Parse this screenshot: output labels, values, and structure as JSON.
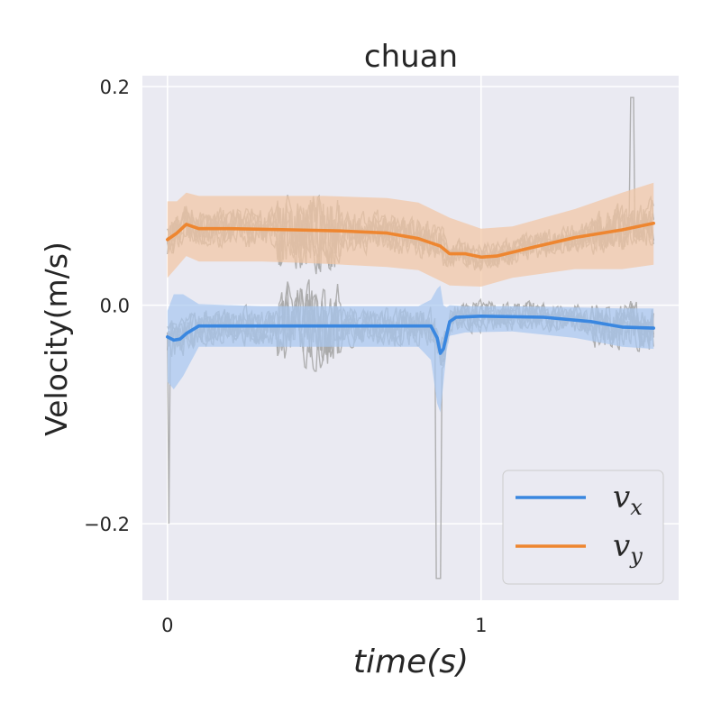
{
  "chart_data": {
    "type": "line",
    "title": "chuan",
    "xlabel": "time(s)",
    "ylabel": "Velocity(m/s)",
    "xlim": [
      -0.08,
      1.63
    ],
    "ylim": [
      -0.27,
      0.21
    ],
    "xticks": [
      0,
      1
    ],
    "xtick_labels": [
      "0",
      "1"
    ],
    "yticks": [
      0.2,
      0.0,
      -0.2
    ],
    "ytick_labels": [
      "0.2",
      "0.0",
      "−0.2"
    ],
    "grid": true,
    "legend_position": "bottom-right",
    "legend": [
      {
        "base": "v",
        "sub": "x",
        "color": "#3a87e0"
      },
      {
        "base": "v",
        "sub": "y",
        "color": "#ee8630"
      }
    ],
    "colors": {
      "background": "#eaeaf2",
      "grid": "#ffffff",
      "raw": "#a9a9a9",
      "vx": "#3a87e0",
      "vx_band": "#a9c8f0",
      "vy": "#ee8630",
      "vy_band": "#f2c6a4"
    },
    "series": [
      {
        "name": "v_x",
        "color": "#3a87e0",
        "x": [
          0,
          0.02,
          0.04,
          0.06,
          0.1,
          0.2,
          0.4,
          0.6,
          0.8,
          0.84,
          0.86,
          0.87,
          0.88,
          0.9,
          0.92,
          1.0,
          1.2,
          1.35,
          1.45,
          1.55
        ],
        "y": [
          -0.029,
          -0.032,
          -0.031,
          -0.026,
          -0.019,
          -0.019,
          -0.019,
          -0.019,
          -0.019,
          -0.019,
          -0.03,
          -0.044,
          -0.04,
          -0.015,
          -0.011,
          -0.01,
          -0.011,
          -0.015,
          -0.02,
          -0.021
        ]
      },
      {
        "name": "v_y",
        "color": "#ee8630",
        "x": [
          0,
          0.03,
          0.06,
          0.1,
          0.2,
          0.4,
          0.55,
          0.7,
          0.8,
          0.87,
          0.9,
          0.95,
          1.0,
          1.05,
          1.15,
          1.3,
          1.45,
          1.55
        ],
        "y": [
          0.06,
          0.066,
          0.074,
          0.07,
          0.07,
          0.069,
          0.068,
          0.066,
          0.061,
          0.054,
          0.047,
          0.047,
          0.044,
          0.045,
          0.052,
          0.062,
          0.069,
          0.075
        ]
      }
    ],
    "bands": [
      {
        "series": "v_x",
        "x": [
          0,
          0.02,
          0.05,
          0.1,
          0.3,
          0.6,
          0.8,
          0.84,
          0.86,
          0.87,
          0.88,
          0.89,
          0.9,
          0.95,
          1.1,
          1.3,
          1.45,
          1.55
        ],
        "upper": [
          -0.005,
          0.01,
          0.01,
          0.001,
          -0.001,
          -0.001,
          -0.001,
          0.005,
          0.015,
          0.018,
          0.0,
          -0.002,
          0.0,
          -0.001,
          -0.001,
          -0.002,
          -0.003,
          -0.003
        ],
        "lower": [
          -0.07,
          -0.077,
          -0.065,
          -0.038,
          -0.038,
          -0.038,
          -0.038,
          -0.05,
          -0.09,
          -0.098,
          -0.072,
          -0.042,
          -0.028,
          -0.025,
          -0.024,
          -0.03,
          -0.038,
          -0.04
        ]
      },
      {
        "series": "v_y",
        "x": [
          0,
          0.03,
          0.06,
          0.1,
          0.3,
          0.5,
          0.7,
          0.8,
          0.9,
          1.0,
          1.1,
          1.3,
          1.45,
          1.55
        ],
        "upper": [
          0.095,
          0.095,
          0.103,
          0.1,
          0.1,
          0.1,
          0.098,
          0.094,
          0.08,
          0.07,
          0.072,
          0.088,
          0.103,
          0.112
        ],
        "lower": [
          0.025,
          0.035,
          0.045,
          0.04,
          0.04,
          0.038,
          0.035,
          0.032,
          0.018,
          0.017,
          0.025,
          0.033,
          0.033,
          0.037
        ]
      }
    ]
  }
}
